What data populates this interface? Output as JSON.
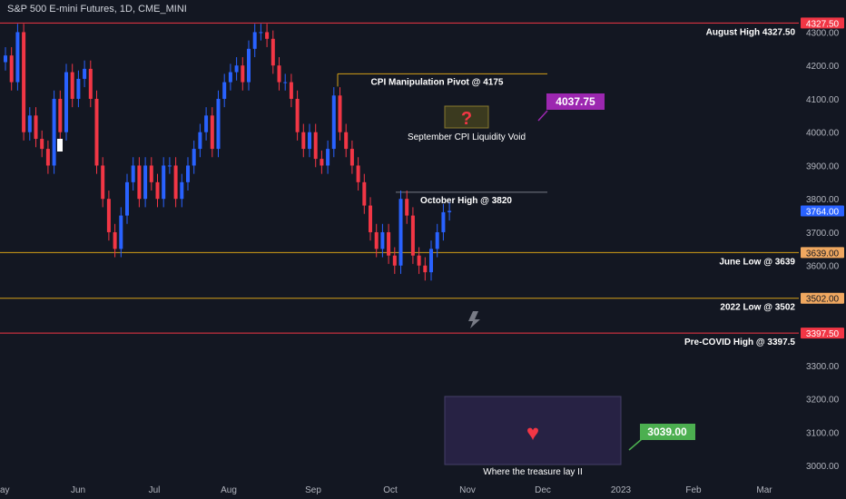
{
  "header": {
    "title": "S&P 500 E-mini Futures, 1D, CME_MINI"
  },
  "colors": {
    "background": "#131722",
    "up": "#2962ff",
    "down": "#f23645",
    "gold": "#d4a017",
    "red_line": "#f23645",
    "text": "#d1d4dc",
    "axis_text": "#b2b5be"
  },
  "chart_data": {
    "type": "candlestick",
    "title": "S&P 500 E-mini Futures, 1D, CME_MINI",
    "x_tick_labels": [
      "ay",
      "Jun",
      "Jul",
      "Aug",
      "Sep",
      "Oct",
      "Nov",
      "Dec",
      "2023",
      "Feb",
      "Mar"
    ],
    "y_ticks": [
      3000,
      3100,
      3200,
      3300,
      3400,
      3500,
      3600,
      3700,
      3800,
      3900,
      4000,
      4100,
      4200,
      4300
    ],
    "y_tick_labels": [
      "3000.00",
      "3100.00",
      "3200.00",
      "3300.00",
      "3400.00",
      "3500.00",
      "3600.00",
      "3700.00",
      "3800.00",
      "3900.00",
      "4000.00",
      "4100.00",
      "4200.00",
      "4300.00"
    ],
    "ylim": [
      2968,
      4342
    ],
    "grid": false,
    "closes": [
      4230,
      4150,
      4300,
      4000,
      4050,
      3980,
      3950,
      3900,
      4100,
      4000,
      4180,
      4100,
      4160,
      4190,
      4100,
      3900,
      3800,
      3700,
      3650,
      3750,
      3850,
      3900,
      3800,
      3900,
      3850,
      3800,
      3900,
      3900,
      3800,
      3850,
      3900,
      3950,
      4000,
      4050,
      3950,
      4100,
      4150,
      4180,
      4200,
      4150,
      4250,
      4300,
      4300,
      4280,
      4200,
      4150,
      4150,
      4100,
      4000,
      3950,
      4000,
      3920,
      3900,
      3950,
      4110,
      4000,
      3950,
      3900,
      3850,
      3780,
      3700,
      3650,
      3700,
      3630,
      3600,
      3800,
      3750,
      3630,
      3600,
      3580,
      3650,
      3700,
      3760,
      3764
    ],
    "price_labels": [
      {
        "text": "4327.50",
        "value": 4327.5,
        "color": "#f23645"
      },
      {
        "text": "3764.00",
        "value": 3764,
        "color": "#2962ff"
      },
      {
        "text": "3639.00",
        "value": 3639,
        "color": "#f0a860"
      },
      {
        "text": "3502.00",
        "value": 3502,
        "color": "#f0a860"
      },
      {
        "text": "3397.50",
        "value": 3397.5,
        "color": "#f23645"
      }
    ],
    "levels": [
      {
        "label": "August High 4327.50",
        "value": 4327.5,
        "color": "#f23645"
      },
      {
        "label": "June Low @ 3639",
        "value": 3639,
        "color": "#d4a017"
      },
      {
        "label": "2022 Low @ 3502",
        "value": 3502,
        "color": "#d4a017"
      },
      {
        "label": "Pre-COVID High @ 3397.5",
        "value": 3397.5,
        "color": "#f23645"
      }
    ],
    "segment_levels": [
      {
        "label": "CPI Manipulation Pivot @ 4175",
        "value": 4175,
        "color": "#d4a017"
      },
      {
        "label": "October High @ 3820",
        "value": 3820,
        "color": "#787b86"
      }
    ],
    "annotations": {
      "void_label": "September CPI Liquidity Void",
      "void_price": "4037.75",
      "treasure_label": "Where the treasure lay II",
      "treasure_price": "3039.00",
      "question_glyph": "?",
      "heart_glyph": "♥"
    }
  }
}
